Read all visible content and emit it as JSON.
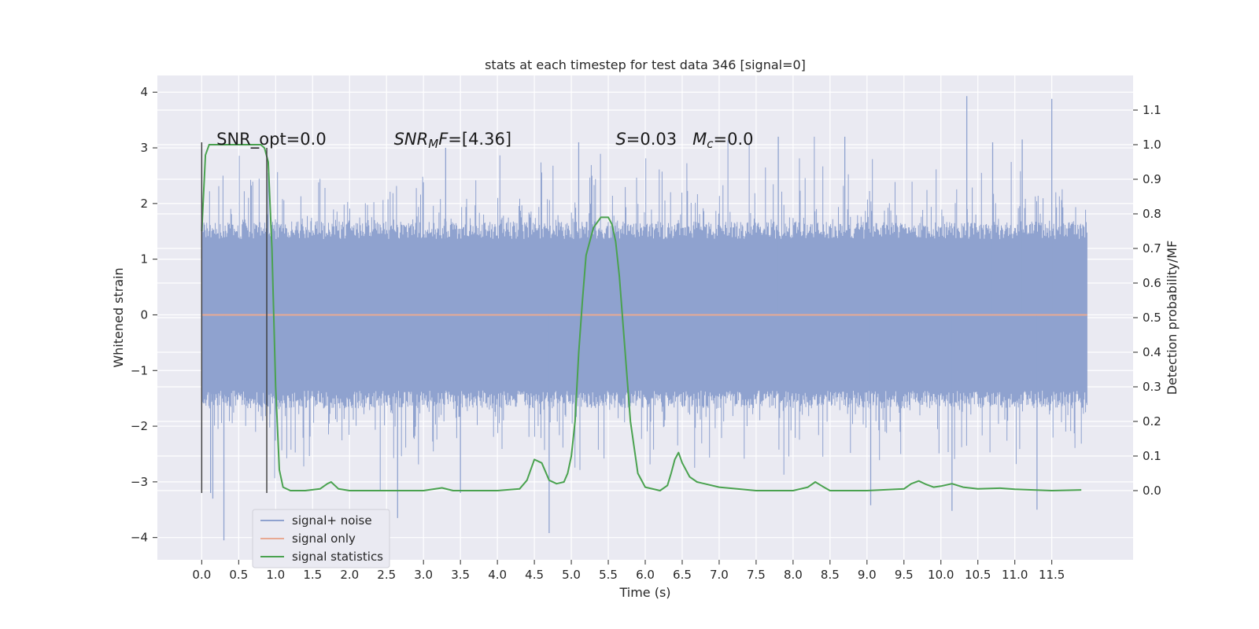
{
  "chart_data": {
    "type": "line",
    "title": "stats at each timestep for test data 346 [signal=0]",
    "xlabel": "Time (s)",
    "ylabel_left": "Whitened strain",
    "ylabel_right": "Detection probability/MF",
    "xlim": [
      -0.6,
      12.6
    ],
    "ylim_left": [
      -4.4,
      4.3
    ],
    "ylim_right": [
      -0.2,
      1.2
    ],
    "x_ticks": [
      0.0,
      0.5,
      1.0,
      1.5,
      2.0,
      2.5,
      3.0,
      3.5,
      4.0,
      4.5,
      5.0,
      5.5,
      6.0,
      6.5,
      7.0,
      7.5,
      8.0,
      8.5,
      9.0,
      9.5,
      10.0,
      10.5,
      11.0,
      11.5
    ],
    "x_tick_labels": [
      "0.0",
      "0.5",
      "1.0",
      "1.5",
      "2.0",
      "2.5",
      "3.0",
      "3.5",
      "4.0",
      "4.5",
      "5.0",
      "5.5",
      "6.0",
      "6.5",
      "7.0",
      "7.5",
      "8.0",
      "8.5",
      "9.0",
      "9.5",
      "10.0",
      "10.5",
      "11.0",
      "11.5"
    ],
    "y_left_ticks": [
      4,
      3,
      2,
      1,
      0,
      -1,
      -2,
      -3,
      -4
    ],
    "y_left_tick_labels": [
      "4",
      "3",
      "2",
      "1",
      "0",
      "−1",
      "−2",
      "−3",
      "−4"
    ],
    "y_right_ticks": [
      1.1,
      1.0,
      0.9,
      0.8,
      0.7,
      0.6,
      0.5,
      0.4,
      0.3,
      0.2,
      0.1,
      0.0
    ],
    "y_right_tick_labels": [
      "1.1",
      "1.0",
      "0.9",
      "0.8",
      "0.7",
      "0.6",
      "0.5",
      "0.4",
      "0.3",
      "0.2",
      "0.1",
      "0.0"
    ],
    "grid": true,
    "legend_position": "lower-left",
    "annotations": [
      {
        "label": "SNR_opt=0.0",
        "x": 0.2,
        "y_right": 1.0
      },
      {
        "label": "SNRₘF=[4.36]",
        "x": 2.6,
        "y_right": 1.0
      },
      {
        "label": "S=0.03   M_c=0.0",
        "x": 5.6,
        "y_right": 1.0
      }
    ],
    "vlines": [
      {
        "x": 0.0,
        "y_left": [
          -3.2,
          3.1
        ]
      },
      {
        "x": 0.88,
        "y_left": [
          -3.2,
          3.0
        ]
      }
    ],
    "series": [
      {
        "name": "signal+ noise",
        "axis": "left",
        "color": "#8fa2cf",
        "kind": "noise",
        "x_range": [
          0.0,
          11.98
        ],
        "typical_band": [
          -1.6,
          1.6
        ],
        "spikes": [
          [
            0.3,
            -4.05
          ],
          [
            0.15,
            -3.3
          ],
          [
            2.65,
            -3.65
          ],
          [
            4.7,
            -3.92
          ],
          [
            9.05,
            -3.42
          ],
          [
            10.15,
            -3.52
          ],
          [
            10.35,
            3.93
          ],
          [
            11.3,
            -3.5
          ],
          [
            11.5,
            3.88
          ],
          [
            3.5,
            -3.2
          ],
          [
            0.12,
            -3.2
          ],
          [
            0.9,
            2.55
          ],
          [
            3.3,
            3.0
          ],
          [
            5.1,
            3.1
          ],
          [
            8.7,
            3.2
          ],
          [
            10.7,
            3.1
          ],
          [
            11.1,
            3.15
          ],
          [
            7.8,
            3.2
          ]
        ]
      },
      {
        "name": "signal only",
        "axis": "left",
        "color": "#e8a993",
        "x": [
          0.0,
          11.98
        ],
        "y": [
          0.0,
          0.0
        ]
      },
      {
        "name": "signal statistics",
        "axis": "right",
        "color": "#4aa24f",
        "x": [
          0.0,
          0.05,
          0.1,
          0.15,
          0.3,
          0.5,
          0.7,
          0.8,
          0.85,
          0.9,
          0.95,
          1.0,
          1.05,
          1.1,
          1.2,
          1.4,
          1.6,
          1.7,
          1.75,
          1.85,
          2.0,
          2.5,
          3.0,
          3.25,
          3.4,
          3.6,
          4.0,
          4.3,
          4.4,
          4.5,
          4.6,
          4.7,
          4.8,
          4.9,
          4.95,
          5.0,
          5.05,
          5.1,
          5.15,
          5.2,
          5.3,
          5.4,
          5.5,
          5.55,
          5.6,
          5.65,
          5.7,
          5.8,
          5.9,
          6.0,
          6.2,
          6.3,
          6.35,
          6.4,
          6.45,
          6.5,
          6.6,
          6.7,
          6.8,
          7.0,
          7.5,
          8.0,
          8.2,
          8.3,
          8.4,
          8.5,
          9.0,
          9.5,
          9.6,
          9.7,
          9.8,
          9.9,
          10.0,
          10.15,
          10.3,
          10.5,
          10.8,
          11.0,
          11.5,
          11.9
        ],
        "y": [
          0.75,
          0.97,
          1.0,
          1.0,
          1.0,
          1.0,
          1.0,
          1.0,
          0.99,
          0.95,
          0.7,
          0.3,
          0.06,
          0.01,
          0.0,
          0.0,
          0.005,
          0.02,
          0.025,
          0.005,
          0.0,
          0.0,
          0.0,
          0.008,
          0.0,
          0.0,
          0.0,
          0.005,
          0.03,
          0.09,
          0.08,
          0.03,
          0.02,
          0.025,
          0.05,
          0.1,
          0.2,
          0.4,
          0.55,
          0.68,
          0.76,
          0.79,
          0.79,
          0.77,
          0.72,
          0.62,
          0.48,
          0.2,
          0.05,
          0.01,
          0.0,
          0.015,
          0.05,
          0.09,
          0.11,
          0.08,
          0.04,
          0.025,
          0.02,
          0.01,
          0.0,
          0.0,
          0.01,
          0.025,
          0.012,
          0.0,
          0.0,
          0.005,
          0.02,
          0.028,
          0.018,
          0.01,
          0.013,
          0.02,
          0.01,
          0.005,
          0.007,
          0.004,
          0.0,
          0.002
        ]
      }
    ]
  }
}
